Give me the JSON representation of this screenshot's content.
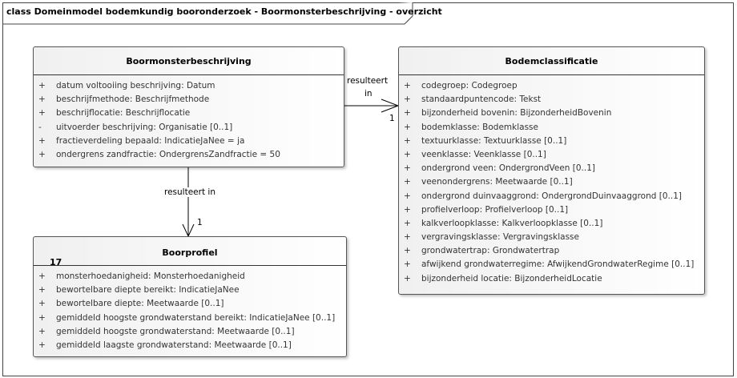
{
  "diagram": {
    "title": "class Domeinmodel bodemkundig booronderzoek - Boormonsterbeschrijving - overzicht"
  },
  "classes": {
    "boormonster": {
      "name": "Boormonsterbeschrijving",
      "attributes": [
        {
          "vis": "+",
          "text": "datum voltooiing beschrijving: Datum"
        },
        {
          "vis": "+",
          "text": "beschrijfmethode: Beschrijfmethode"
        },
        {
          "vis": "+",
          "text": "beschrijflocatie: Beschrijflocatie"
        },
        {
          "vis": "-",
          "text": "uitvoerder beschrijving: Organisatie [0..1]"
        },
        {
          "vis": "+",
          "text": "fractieverdeling bepaald: IndicatieJaNee = ja"
        },
        {
          "vis": "+",
          "text": "ondergrens zandfractie: OndergrensZandfractie = 50"
        }
      ]
    },
    "boorprofiel": {
      "name": "Boorprofiel",
      "number": "17",
      "attributes": [
        {
          "vis": "+",
          "text": "monsterhoedanigheid: Monsterhoedanigheid"
        },
        {
          "vis": "+",
          "text": "bewortelbare diepte bereikt: IndicatieJaNee"
        },
        {
          "vis": "+",
          "text": "bewortelbare diepte: Meetwaarde [0..1]"
        },
        {
          "vis": "+",
          "text": "gemiddeld hoogste grondwaterstand bereikt: IndicatieJaNee [0..1]"
        },
        {
          "vis": "+",
          "text": "gemiddeld hoogste grondwaterstand: Meetwaarde [0..1]"
        },
        {
          "vis": "+",
          "text": "gemiddeld laagste grondwaterstand: Meetwaarde [0..1]"
        }
      ]
    },
    "bodemclassificatie": {
      "name": "Bodemclassificatie",
      "attributes": [
        {
          "vis": "+",
          "text": "codegroep: Codegroep"
        },
        {
          "vis": "+",
          "text": "standaardpuntencode: Tekst"
        },
        {
          "vis": "+",
          "text": "bijzonderheid bovenin: BijzonderheidBovenin"
        },
        {
          "vis": "+",
          "text": "bodemklasse: Bodemklasse"
        },
        {
          "vis": "+",
          "text": "textuurklasse: Textuurklasse [0..1]"
        },
        {
          "vis": "+",
          "text": "veenklasse: Veenklasse [0..1]"
        },
        {
          "vis": "+",
          "text": "ondergrond veen: OndergrondVeen [0..1]"
        },
        {
          "vis": "+",
          "text": "veenondergrens: Meetwaarde [0..1]"
        },
        {
          "vis": "+",
          "text": "ondergrond duinvaaggrond: OndergrondDuinvaaggrond [0..1]"
        },
        {
          "vis": "+",
          "text": "profielverloop: Profielverloop [0..1]"
        },
        {
          "vis": "+",
          "text": "kalkverloopklasse: Kalkverloopklasse [0..1]"
        },
        {
          "vis": "+",
          "text": "vergravingsklasse: Vergravingsklasse"
        },
        {
          "vis": "+",
          "text": "grondwatertrap: Grondwatertrap"
        },
        {
          "vis": "+",
          "text": "afwijkend grondwaterregime: AfwijkendGrondwaterRegime [0..1]"
        },
        {
          "vis": "+",
          "text": "bijzonderheid locatie: BijzonderheidLocatie"
        }
      ]
    }
  },
  "associations": {
    "to_bodemclassificatie": {
      "label_line1": "resulteert",
      "label_line2": "in",
      "multiplicity": "1"
    },
    "to_boorprofiel": {
      "label": "resulteert in",
      "multiplicity": "1"
    }
  }
}
